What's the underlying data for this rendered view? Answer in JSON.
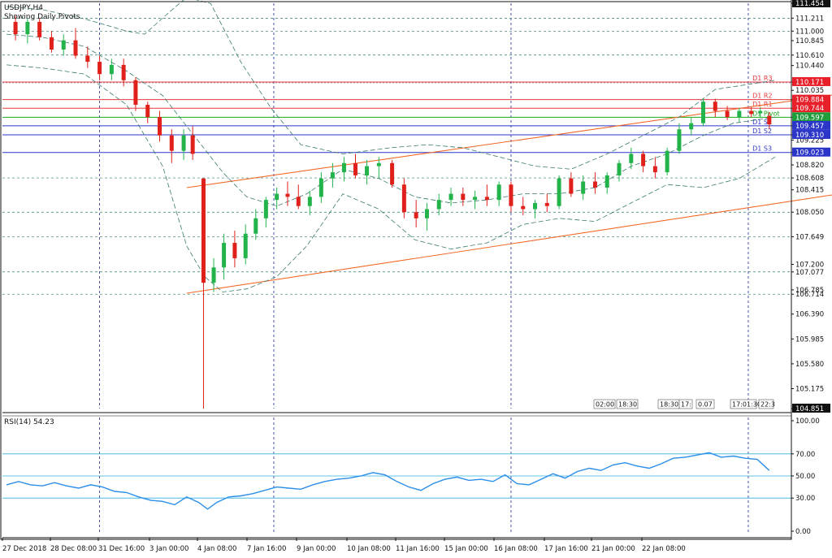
{
  "symbol_label": "USDJPY,H4",
  "subtitle": "Showing Daily Pivots",
  "colors": {
    "bull": "#22b34a",
    "bear": "#e0201b",
    "pivot_line": "#1aa81a",
    "resistance_line": "#e8383d",
    "support_line": "#2b35c8",
    "channel": "#f26a2a",
    "rsi_line": "#2b8ee8",
    "rsi_level": "#2fb0e0",
    "grid": "#1c2a8c",
    "price_tag_red": "#e8202a",
    "price_tag_green": "#1f9d3a",
    "price_tag_blue": "#2b35c8",
    "price_tag_black": "#111111"
  },
  "chart_data": {
    "type": "candlestick",
    "title": "USDJPY,H4",
    "subtitle": "Showing Daily Pivots",
    "ylim": [
      104.851,
      111.454
    ],
    "y_ticks": [
      111.454,
      111.211,
      111.0,
      110.845,
      110.61,
      110.44,
      110.171,
      110.035,
      109.884,
      109.744,
      109.597,
      109.457,
      109.31,
      109.225,
      109.023,
      108.82,
      108.608,
      108.415,
      108.05,
      107.649,
      107.2,
      107.077,
      106.785,
      106.714,
      106.39,
      105.985,
      105.58,
      105.175,
      104.851
    ],
    "y_tick_labels": [
      "111.454",
      "111.211",
      "111.000",
      "110.845",
      "110.610",
      "110.440",
      "110.171",
      "110.035",
      "109.884",
      "109.744",
      "109.597",
      "109.457",
      "109.310",
      "109.225",
      "109.023",
      "108.820",
      "108.608",
      "108.415",
      "108.050",
      "107.649",
      "107.200",
      "107.077",
      "106.785",
      "106.714",
      "106.390",
      "105.985",
      "105.580",
      "105.175",
      "104.851"
    ],
    "x_labels": [
      "27 Dec 2018",
      "28 Dec 08:00",
      "31 Dec 16:00",
      "3 Jan 00:00",
      "4 Jan 08:00",
      "7 Jan 16:00",
      "9 Jan 00:00",
      "10 Jan 08:00",
      "11 Jan 16:00",
      "15 Jan 00:00",
      "16 Jan 08:00",
      "17 Jan 16:00",
      "21 Jan 00:00",
      "22 Jan 08:00"
    ],
    "pivots": [
      {
        "label": "D1 R3",
        "value": 110.171,
        "kind": "resistance"
      },
      {
        "label": "D1 R2",
        "value": 109.884,
        "kind": "resistance"
      },
      {
        "label": "D1 R1",
        "value": 109.744,
        "kind": "resistance"
      },
      {
        "label": "D1 Pivot",
        "value": 109.597,
        "kind": "pivot"
      },
      {
        "label": "D1 S1",
        "value": 109.457,
        "kind": "support"
      },
      {
        "label": "D1 S2",
        "value": 109.31,
        "kind": "support"
      },
      {
        "label": "D1 S3",
        "value": 109.023,
        "kind": "support"
      }
    ],
    "price_tags": [
      {
        "text": "111.454",
        "value": 111.454,
        "kind": "black"
      },
      {
        "text": "110.171",
        "value": 110.171,
        "kind": "red"
      },
      {
        "text": "109.884",
        "value": 109.884,
        "kind": "red"
      },
      {
        "text": "109.744",
        "value": 109.744,
        "kind": "red"
      },
      {
        "text": "109.597",
        "value": 109.597,
        "kind": "green"
      },
      {
        "text": "109.457",
        "value": 109.457,
        "kind": "blue"
      },
      {
        "text": "109.310",
        "value": 109.31,
        "kind": "blue"
      },
      {
        "text": "109.023",
        "value": 109.023,
        "kind": "blue"
      },
      {
        "text": "104.851",
        "value": 104.851,
        "kind": "black"
      }
    ],
    "channel_upper": [
      [
        3.0,
        108.45
      ],
      [
        22.6,
        111.2
      ]
    ],
    "channel_lower": [
      [
        3.0,
        106.73
      ],
      [
        22.6,
        109.65
      ]
    ],
    "candles": [
      {
        "t": 0.15,
        "o": 111.15,
        "h": 111.25,
        "l": 110.85,
        "c": 110.95
      },
      {
        "t": 0.35,
        "o": 110.95,
        "h": 111.2,
        "l": 110.8,
        "c": 111.15
      },
      {
        "t": 0.55,
        "o": 111.15,
        "h": 111.2,
        "l": 110.85,
        "c": 110.9
      },
      {
        "t": 0.75,
        "o": 110.9,
        "h": 111.0,
        "l": 110.65,
        "c": 110.7
      },
      {
        "t": 0.95,
        "o": 110.7,
        "h": 110.95,
        "l": 110.6,
        "c": 110.85
      },
      {
        "t": 1.15,
        "o": 110.85,
        "h": 111.05,
        "l": 110.55,
        "c": 110.6
      },
      {
        "t": 1.35,
        "o": 110.6,
        "h": 110.75,
        "l": 110.4,
        "c": 110.5
      },
      {
        "t": 1.55,
        "o": 110.5,
        "h": 110.6,
        "l": 110.2,
        "c": 110.3
      },
      {
        "t": 1.75,
        "o": 110.3,
        "h": 110.55,
        "l": 110.2,
        "c": 110.45
      },
      {
        "t": 1.95,
        "o": 110.45,
        "h": 110.55,
        "l": 110.1,
        "c": 110.2
      },
      {
        "t": 2.15,
        "o": 110.2,
        "h": 110.25,
        "l": 109.7,
        "c": 109.8
      },
      {
        "t": 2.35,
        "o": 109.8,
        "h": 109.85,
        "l": 109.5,
        "c": 109.6
      },
      {
        "t": 2.55,
        "o": 109.6,
        "h": 109.7,
        "l": 109.2,
        "c": 109.3
      },
      {
        "t": 2.75,
        "o": 109.3,
        "h": 109.4,
        "l": 108.85,
        "c": 109.05
      },
      {
        "t": 2.95,
        "o": 109.05,
        "h": 109.4,
        "l": 108.9,
        "c": 109.3
      },
      {
        "t": 3.1,
        "o": 109.3,
        "h": 109.45,
        "l": 108.9,
        "c": 109.0
      },
      {
        "t": 3.28,
        "o": 108.6,
        "h": 108.6,
        "l": 104.85,
        "c": 106.9
      },
      {
        "t": 3.45,
        "o": 106.9,
        "h": 107.3,
        "l": 106.75,
        "c": 107.15
      },
      {
        "t": 3.62,
        "o": 107.15,
        "h": 107.7,
        "l": 106.95,
        "c": 107.55
      },
      {
        "t": 3.8,
        "o": 107.55,
        "h": 107.75,
        "l": 107.15,
        "c": 107.3
      },
      {
        "t": 3.98,
        "o": 107.3,
        "h": 107.85,
        "l": 107.2,
        "c": 107.7
      },
      {
        "t": 4.15,
        "o": 107.7,
        "h": 108.1,
        "l": 107.6,
        "c": 107.95
      },
      {
        "t": 4.32,
        "o": 107.95,
        "h": 108.3,
        "l": 107.8,
        "c": 108.25
      },
      {
        "t": 4.5,
        "o": 108.25,
        "h": 108.45,
        "l": 108.1,
        "c": 108.35
      },
      {
        "t": 4.68,
        "o": 108.35,
        "h": 108.55,
        "l": 108.15,
        "c": 108.3
      },
      {
        "t": 4.86,
        "o": 108.3,
        "h": 108.5,
        "l": 108.1,
        "c": 108.15
      },
      {
        "t": 5.05,
        "o": 108.15,
        "h": 108.4,
        "l": 108.0,
        "c": 108.3
      },
      {
        "t": 5.24,
        "o": 108.3,
        "h": 108.7,
        "l": 108.2,
        "c": 108.6
      },
      {
        "t": 5.43,
        "o": 108.6,
        "h": 108.85,
        "l": 108.45,
        "c": 108.7
      },
      {
        "t": 5.62,
        "o": 108.7,
        "h": 108.95,
        "l": 108.55,
        "c": 108.85
      },
      {
        "t": 5.81,
        "o": 108.85,
        "h": 109.0,
        "l": 108.6,
        "c": 108.65
      },
      {
        "t": 6.0,
        "o": 108.65,
        "h": 108.9,
        "l": 108.5,
        "c": 108.8
      },
      {
        "t": 6.2,
        "o": 108.8,
        "h": 108.95,
        "l": 108.6,
        "c": 108.85
      },
      {
        "t": 6.42,
        "o": 108.85,
        "h": 108.9,
        "l": 108.45,
        "c": 108.5
      },
      {
        "t": 6.62,
        "o": 108.5,
        "h": 108.6,
        "l": 107.95,
        "c": 108.05
      },
      {
        "t": 6.82,
        "o": 108.05,
        "h": 108.25,
        "l": 107.8,
        "c": 107.95
      },
      {
        "t": 7.0,
        "o": 107.95,
        "h": 108.2,
        "l": 107.75,
        "c": 108.1
      },
      {
        "t": 7.2,
        "o": 108.1,
        "h": 108.35,
        "l": 108.0,
        "c": 108.25
      },
      {
        "t": 7.4,
        "o": 108.25,
        "h": 108.45,
        "l": 108.15,
        "c": 108.35
      },
      {
        "t": 7.6,
        "o": 108.35,
        "h": 108.45,
        "l": 108.15,
        "c": 108.25
      },
      {
        "t": 7.8,
        "o": 108.25,
        "h": 108.4,
        "l": 108.1,
        "c": 108.3
      },
      {
        "t": 8.0,
        "o": 108.3,
        "h": 108.5,
        "l": 108.15,
        "c": 108.25
      },
      {
        "t": 8.2,
        "o": 108.25,
        "h": 108.55,
        "l": 108.15,
        "c": 108.5
      },
      {
        "t": 8.4,
        "o": 108.5,
        "h": 108.55,
        "l": 108.05,
        "c": 108.15
      },
      {
        "t": 8.6,
        "o": 108.15,
        "h": 108.3,
        "l": 108.0,
        "c": 108.1
      },
      {
        "t": 8.8,
        "o": 108.1,
        "h": 108.25,
        "l": 107.95,
        "c": 108.2
      },
      {
        "t": 9.0,
        "o": 108.2,
        "h": 108.35,
        "l": 108.05,
        "c": 108.15
      },
      {
        "t": 9.2,
        "o": 108.15,
        "h": 108.65,
        "l": 108.1,
        "c": 108.6
      },
      {
        "t": 9.4,
        "o": 108.6,
        "h": 108.7,
        "l": 108.3,
        "c": 108.35
      },
      {
        "t": 9.6,
        "o": 108.35,
        "h": 108.65,
        "l": 108.25,
        "c": 108.55
      },
      {
        "t": 9.8,
        "o": 108.55,
        "h": 108.7,
        "l": 108.35,
        "c": 108.45
      },
      {
        "t": 10.0,
        "o": 108.45,
        "h": 108.7,
        "l": 108.35,
        "c": 108.65
      },
      {
        "t": 10.2,
        "o": 108.65,
        "h": 108.9,
        "l": 108.55,
        "c": 108.85
      },
      {
        "t": 10.4,
        "o": 108.85,
        "h": 109.1,
        "l": 108.75,
        "c": 109.0
      },
      {
        "t": 10.6,
        "o": 109.0,
        "h": 109.05,
        "l": 108.7,
        "c": 108.8
      },
      {
        "t": 10.8,
        "o": 108.8,
        "h": 108.95,
        "l": 108.6,
        "c": 108.7
      },
      {
        "t": 11.0,
        "o": 108.7,
        "h": 109.1,
        "l": 108.65,
        "c": 109.05
      },
      {
        "t": 11.2,
        "o": 109.05,
        "h": 109.5,
        "l": 109.0,
        "c": 109.4
      },
      {
        "t": 11.4,
        "o": 109.4,
        "h": 109.6,
        "l": 109.3,
        "c": 109.5
      },
      {
        "t": 11.6,
        "o": 109.5,
        "h": 109.9,
        "l": 109.45,
        "c": 109.85
      },
      {
        "t": 11.8,
        "o": 109.85,
        "h": 109.9,
        "l": 109.6,
        "c": 109.7
      },
      {
        "t": 12.0,
        "o": 109.7,
        "h": 109.78,
        "l": 109.55,
        "c": 109.6
      },
      {
        "t": 12.2,
        "o": 109.6,
        "h": 109.75,
        "l": 109.52,
        "c": 109.7
      },
      {
        "t": 12.4,
        "o": 109.7,
        "h": 109.76,
        "l": 109.6,
        "c": 109.65
      },
      {
        "t": 12.55,
        "o": 109.66,
        "h": 109.76,
        "l": 109.6,
        "c": 109.7
      },
      {
        "t": 12.7,
        "o": 109.62,
        "h": 109.68,
        "l": 109.4,
        "c": 109.48
      }
    ],
    "bollinger": {
      "middle": [
        [
          0,
          110.95
        ],
        [
          0.6,
          110.9
        ],
        [
          1.3,
          110.75
        ],
        [
          2,
          110.35
        ],
        [
          2.6,
          109.95
        ],
        [
          3.2,
          109.2
        ],
        [
          3.6,
          108.7
        ],
        [
          4.0,
          108.3
        ],
        [
          4.5,
          108.15
        ],
        [
          5.0,
          108.35
        ],
        [
          5.6,
          108.75
        ],
        [
          6.2,
          108.6
        ],
        [
          6.8,
          108.3
        ],
        [
          7.4,
          108.2
        ],
        [
          8.0,
          108.25
        ],
        [
          8.6,
          108.35
        ],
        [
          9.2,
          108.35
        ],
        [
          9.8,
          108.45
        ],
        [
          10.4,
          108.8
        ],
        [
          11.0,
          109.0
        ],
        [
          11.6,
          109.3
        ],
        [
          12.1,
          109.5
        ],
        [
          12.8,
          109.6
        ]
      ],
      "upper": [
        [
          0,
          111.4
        ],
        [
          0.6,
          111.35
        ],
        [
          1.3,
          111.2
        ],
        [
          2,
          111.0
        ],
        [
          2.3,
          110.95
        ],
        [
          2.7,
          111.3
        ],
        [
          3.0,
          111.55
        ],
        [
          3.4,
          111.45
        ],
        [
          3.9,
          110.5
        ],
        [
          4.4,
          109.75
        ],
        [
          4.9,
          109.15
        ],
        [
          5.6,
          109.0
        ],
        [
          6.4,
          109.1
        ],
        [
          7.0,
          109.15
        ],
        [
          7.6,
          109.1
        ],
        [
          8.2,
          108.95
        ],
        [
          8.8,
          108.8
        ],
        [
          9.4,
          108.75
        ],
        [
          10.0,
          109.0
        ],
        [
          10.6,
          109.3
        ],
        [
          11.2,
          109.6
        ],
        [
          11.8,
          110.05
        ],
        [
          12.8,
          110.2
        ]
      ],
      "lower": [
        [
          0,
          110.45
        ],
        [
          0.6,
          110.4
        ],
        [
          1.3,
          110.3
        ],
        [
          2,
          109.8
        ],
        [
          2.6,
          108.8
        ],
        [
          3.0,
          107.5
        ],
        [
          3.3,
          107.0
        ],
        [
          3.6,
          106.75
        ],
        [
          4.0,
          106.8
        ],
        [
          4.5,
          107.0
        ],
        [
          5.0,
          107.5
        ],
        [
          5.6,
          108.35
        ],
        [
          6.2,
          108.1
        ],
        [
          6.8,
          107.6
        ],
        [
          7.4,
          107.45
        ],
        [
          8.0,
          107.55
        ],
        [
          8.6,
          107.85
        ],
        [
          9.2,
          107.95
        ],
        [
          9.8,
          107.9
        ],
        [
          10.4,
          108.2
        ],
        [
          11.0,
          108.5
        ],
        [
          11.6,
          108.45
        ],
        [
          12.2,
          108.6
        ],
        [
          12.8,
          108.95
        ]
      ]
    },
    "rsi": {
      "label": "RSI(14) 54.23",
      "ylim": [
        0,
        100
      ],
      "ticks": [
        100.0,
        70.0,
        50.0,
        30.0,
        0.0
      ],
      "tick_labels": [
        "100.00",
        "70.00",
        "50.00",
        "30.00",
        "0.00"
      ],
      "levels": [
        70,
        50,
        30
      ],
      "values": [
        [
          0,
          42
        ],
        [
          0.2,
          45
        ],
        [
          0.4,
          42
        ],
        [
          0.6,
          41
        ],
        [
          0.8,
          44
        ],
        [
          1.0,
          41
        ],
        [
          1.2,
          39
        ],
        [
          1.4,
          42
        ],
        [
          1.6,
          40
        ],
        [
          1.8,
          36
        ],
        [
          2.0,
          35
        ],
        [
          2.2,
          31
        ],
        [
          2.4,
          28
        ],
        [
          2.6,
          27
        ],
        [
          2.8,
          24
        ],
        [
          3.0,
          31
        ],
        [
          3.2,
          26
        ],
        [
          3.35,
          20
        ],
        [
          3.5,
          26
        ],
        [
          3.7,
          31
        ],
        [
          3.9,
          32
        ],
        [
          4.1,
          34
        ],
        [
          4.3,
          37
        ],
        [
          4.5,
          40
        ],
        [
          4.7,
          39
        ],
        [
          4.9,
          38
        ],
        [
          5.1,
          42
        ],
        [
          5.3,
          45
        ],
        [
          5.5,
          47
        ],
        [
          5.7,
          48
        ],
        [
          5.9,
          50
        ],
        [
          6.1,
          53
        ],
        [
          6.3,
          51
        ],
        [
          6.5,
          45
        ],
        [
          6.7,
          40
        ],
        [
          6.9,
          37
        ],
        [
          7.1,
          43
        ],
        [
          7.3,
          47
        ],
        [
          7.5,
          49
        ],
        [
          7.7,
          46
        ],
        [
          7.9,
          47
        ],
        [
          8.1,
          45
        ],
        [
          8.3,
          51
        ],
        [
          8.5,
          43
        ],
        [
          8.7,
          42
        ],
        [
          8.9,
          47
        ],
        [
          9.1,
          52
        ],
        [
          9.3,
          48
        ],
        [
          9.5,
          54
        ],
        [
          9.7,
          57
        ],
        [
          9.9,
          55
        ],
        [
          10.1,
          60
        ],
        [
          10.3,
          62
        ],
        [
          10.5,
          59
        ],
        [
          10.7,
          57
        ],
        [
          10.9,
          61
        ],
        [
          11.1,
          66
        ],
        [
          11.3,
          67
        ],
        [
          11.5,
          69
        ],
        [
          11.7,
          71
        ],
        [
          11.9,
          67
        ],
        [
          12.1,
          68
        ],
        [
          12.3,
          66
        ],
        [
          12.5,
          65
        ],
        [
          12.7,
          55
        ]
      ]
    }
  },
  "watermark_times": [
    "02:00",
    "18:30",
    "18:30",
    "17:",
    "0.07",
    "17:01:30",
    "22:3"
  ]
}
